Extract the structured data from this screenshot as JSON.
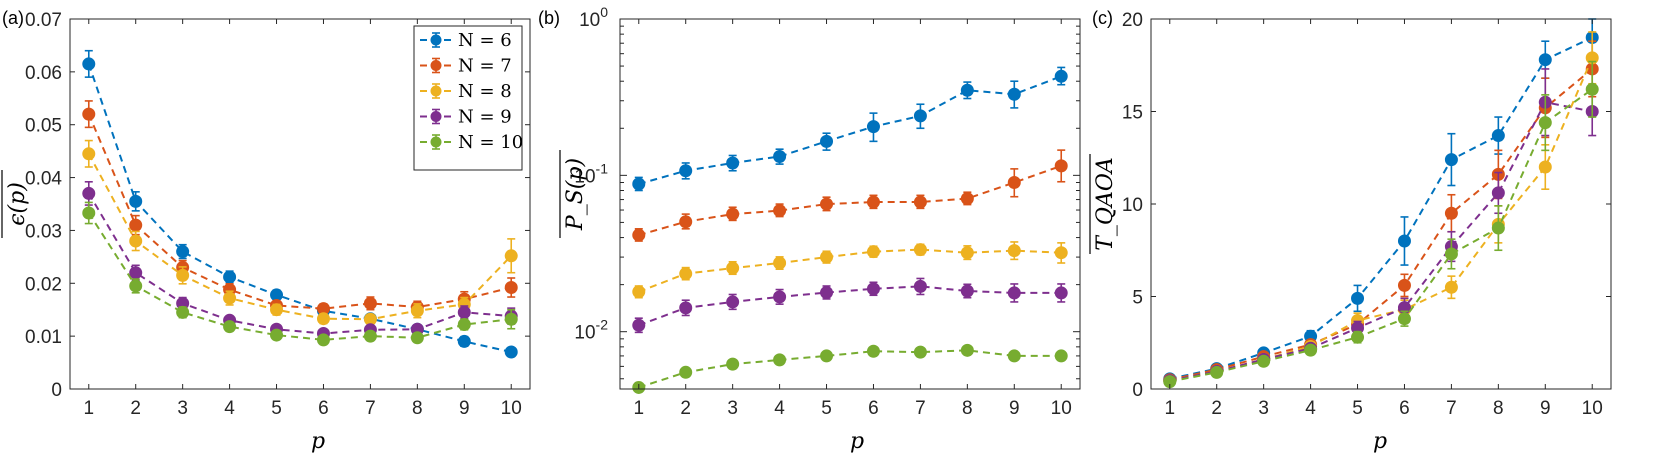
{
  "colors": {
    "N6": "#0072BD",
    "N7": "#D95319",
    "N8": "#EDB120",
    "N9": "#7E2F8E",
    "N10": "#77AC30"
  },
  "legend": {
    "placement": "top-right of panel (a)",
    "entries": [
      "N = 6",
      "N = 7",
      "N = 8",
      "N = 9",
      "N = 10"
    ]
  },
  "chart_data": [
    {
      "panel_label": "(a)",
      "type": "line",
      "xlabel": "p",
      "ylabel": "ϵ(p)",
      "xlim": [
        0.6,
        10.4
      ],
      "ylim": [
        0,
        0.07
      ],
      "y_scale": "linear",
      "x_ticks": [
        "1",
        "2",
        "3",
        "4",
        "5",
        "6",
        "7",
        "8",
        "9",
        "10"
      ],
      "y_ticks": [
        "0",
        "0.01",
        "0.02",
        "0.03",
        "0.04",
        "0.05",
        "0.06",
        "0.07"
      ],
      "x": [
        1,
        2,
        3,
        4,
        5,
        6,
        7,
        8,
        9,
        10
      ],
      "series": [
        {
          "name": "N = 6",
          "values": [
            0.0615,
            0.0355,
            0.026,
            0.0212,
            0.0178,
            0.0148,
            0.0133,
            0.0113,
            0.009,
            0.007
          ],
          "err": [
            0.0025,
            0.0018,
            0.0013,
            0.0011,
            0.0009,
            0.0008,
            0.0007,
            0.0007,
            0.0009,
            0.0008
          ]
        },
        {
          "name": "N = 7",
          "values": [
            0.052,
            0.031,
            0.023,
            0.0188,
            0.0158,
            0.0152,
            0.0162,
            0.0155,
            0.017,
            0.0192
          ],
          "err": [
            0.0025,
            0.0018,
            0.0013,
            0.0011,
            0.0009,
            0.0009,
            0.0012,
            0.0011,
            0.0014,
            0.0018
          ]
        },
        {
          "name": "N = 8",
          "values": [
            0.0445,
            0.028,
            0.0215,
            0.0172,
            0.015,
            0.0133,
            0.0132,
            0.0148,
            0.016,
            0.0252
          ],
          "err": [
            0.0025,
            0.0018,
            0.0016,
            0.0013,
            0.001,
            0.0009,
            0.0009,
            0.0013,
            0.0013,
            0.0032
          ]
        },
        {
          "name": "N = 9",
          "values": [
            0.037,
            0.022,
            0.0162,
            0.013,
            0.0113,
            0.0105,
            0.0112,
            0.0113,
            0.0145,
            0.0138
          ],
          "err": [
            0.0022,
            0.0014,
            0.0011,
            0.0008,
            0.0008,
            0.0007,
            0.0008,
            0.0008,
            0.0012,
            0.0015
          ]
        },
        {
          "name": "N = 10",
          "values": [
            0.0333,
            0.0195,
            0.0145,
            0.0118,
            0.0102,
            0.0093,
            0.01,
            0.0097,
            0.0122,
            0.0132
          ],
          "err": [
            0.002,
            0.0013,
            0.001,
            0.0008,
            0.0006,
            0.0006,
            0.0007,
            0.0007,
            0.001,
            0.0018
          ]
        }
      ]
    },
    {
      "panel_label": "(b)",
      "type": "line",
      "xlabel": "p",
      "ylabel": "P_S(p)",
      "xlim": [
        0.6,
        10.4
      ],
      "ylim": [
        0.0043,
        1
      ],
      "y_scale": "log",
      "x_ticks": [
        "1",
        "2",
        "3",
        "4",
        "5",
        "6",
        "7",
        "8",
        "9",
        "10"
      ],
      "y_ticks": [
        "10-2",
        "10-1",
        "100"
      ],
      "x": [
        1,
        2,
        3,
        4,
        5,
        6,
        7,
        8,
        9,
        10
      ],
      "series": [
        {
          "name": "N = 6",
          "values": [
            0.088,
            0.107,
            0.12,
            0.132,
            0.165,
            0.205,
            0.24,
            0.35,
            0.33,
            0.43
          ],
          "err_lo": [
            0.008,
            0.012,
            0.013,
            0.014,
            0.02,
            0.04,
            0.04,
            0.04,
            0.06,
            0.05
          ],
          "err_hi": [
            0.009,
            0.013,
            0.014,
            0.015,
            0.021,
            0.045,
            0.045,
            0.045,
            0.07,
            0.06
          ]
        },
        {
          "name": "N = 7",
          "values": [
            0.0415,
            0.0505,
            0.0565,
            0.0595,
            0.0655,
            0.0675,
            0.0675,
            0.071,
            0.09,
            0.115
          ],
          "err_lo": [
            0.0035,
            0.005,
            0.005,
            0.005,
            0.006,
            0.006,
            0.006,
            0.006,
            0.017,
            0.024
          ],
          "err_hi": [
            0.004,
            0.006,
            0.006,
            0.006,
            0.007,
            0.007,
            0.007,
            0.007,
            0.02,
            0.03
          ]
        },
        {
          "name": "N = 8",
          "values": [
            0.018,
            0.0235,
            0.0255,
            0.0275,
            0.03,
            0.0325,
            0.0335,
            0.032,
            0.033,
            0.032
          ],
          "err_lo": [
            0.0015,
            0.002,
            0.0022,
            0.0024,
            0.0025,
            0.0025,
            0.0025,
            0.003,
            0.004,
            0.0045
          ],
          "err_hi": [
            0.0016,
            0.0022,
            0.0025,
            0.0026,
            0.0027,
            0.0027,
            0.0027,
            0.0034,
            0.0045,
            0.005
          ]
        },
        {
          "name": "N = 9",
          "values": [
            0.011,
            0.0142,
            0.0155,
            0.0167,
            0.0178,
            0.0188,
            0.0195,
            0.0182,
            0.0177,
            0.0177
          ],
          "err_lo": [
            0.0011,
            0.0015,
            0.0016,
            0.0017,
            0.0016,
            0.0017,
            0.0022,
            0.0017,
            0.0022,
            0.0022
          ],
          "err_hi": [
            0.0012,
            0.0017,
            0.0018,
            0.0019,
            0.0018,
            0.0019,
            0.0024,
            0.0019,
            0.0025,
            0.0025
          ]
        },
        {
          "name": "N = 10",
          "values": [
            0.0044,
            0.0055,
            0.0062,
            0.0066,
            0.007,
            0.0075,
            0.0074,
            0.0076,
            0.007,
            0.007
          ],
          "err_lo": [
            0.0002,
            0.0002,
            0.0002,
            0.0002,
            0.0002,
            0.0002,
            0.0002,
            0.0002,
            0.0002,
            0.0002
          ],
          "err_hi": [
            0.0002,
            0.0002,
            0.0002,
            0.0002,
            0.0002,
            0.0002,
            0.0002,
            0.0002,
            0.0002,
            0.0002
          ]
        }
      ]
    },
    {
      "panel_label": "(c)",
      "type": "line",
      "xlabel": "p",
      "ylabel": "T_QAOA",
      "xlim": [
        0.6,
        10.4
      ],
      "ylim": [
        0,
        20
      ],
      "y_scale": "linear",
      "x_ticks": [
        "1",
        "2",
        "3",
        "4",
        "5",
        "6",
        "7",
        "8",
        "9",
        "10"
      ],
      "y_ticks": [
        "0",
        "5",
        "10",
        "15",
        "20"
      ],
      "x": [
        1,
        2,
        3,
        4,
        5,
        6,
        7,
        8,
        9,
        10
      ],
      "series": [
        {
          "name": "N = 6",
          "values": [
            0.55,
            1.1,
            1.95,
            2.85,
            4.9,
            8.0,
            12.4,
            13.7,
            17.8,
            19.0
          ],
          "err": [
            0.06,
            0.12,
            0.2,
            0.3,
            0.7,
            1.3,
            1.4,
            1.0,
            1.0,
            1.0
          ]
        },
        {
          "name": "N = 7",
          "values": [
            0.5,
            1.05,
            1.75,
            2.4,
            3.5,
            5.6,
            9.5,
            11.6,
            15.2,
            17.3
          ],
          "err": [
            0.05,
            0.1,
            0.15,
            0.25,
            0.4,
            0.6,
            1.0,
            1.3,
            1.6,
            1.5
          ]
        },
        {
          "name": "N = 8",
          "values": [
            0.45,
            0.95,
            1.6,
            2.3,
            3.7,
            4.3,
            5.5,
            8.9,
            12.0,
            17.9
          ],
          "err": [
            0.05,
            0.1,
            0.15,
            0.25,
            0.4,
            0.5,
            0.6,
            1.0,
            1.2,
            1.4
          ]
        },
        {
          "name": "N = 9",
          "values": [
            0.45,
            0.95,
            1.6,
            2.2,
            3.3,
            4.4,
            7.7,
            10.6,
            15.5,
            15.0
          ],
          "err": [
            0.05,
            0.1,
            0.15,
            0.2,
            0.35,
            0.5,
            0.8,
            1.1,
            1.8,
            1.3
          ]
        },
        {
          "name": "N = 10",
          "values": [
            0.4,
            0.9,
            1.5,
            2.1,
            2.8,
            3.8,
            7.3,
            8.7,
            14.4,
            16.2
          ],
          "err": [
            0.04,
            0.08,
            0.15,
            0.2,
            0.3,
            0.4,
            0.8,
            1.2,
            1.5,
            1.5
          ]
        }
      ]
    }
  ]
}
